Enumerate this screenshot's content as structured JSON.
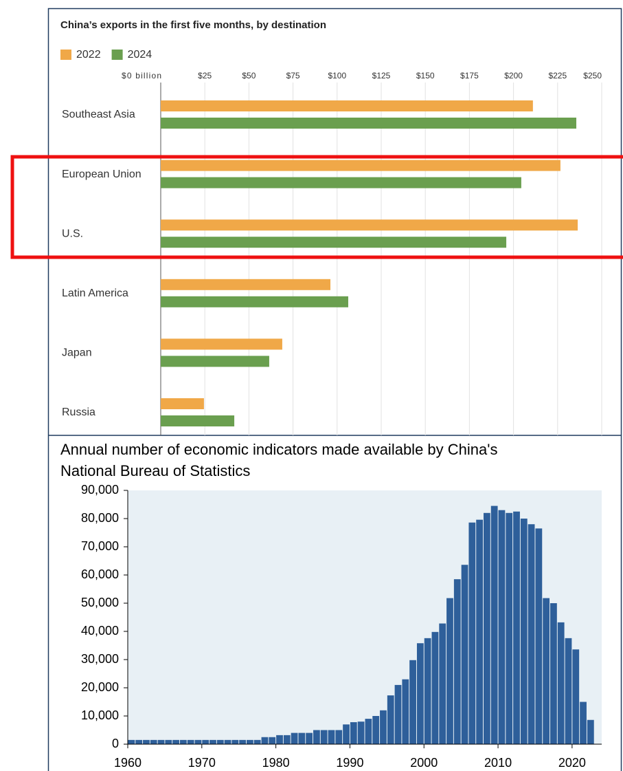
{
  "chart_data": [
    {
      "type": "barh",
      "title": "China’s exports in the first five months, by destination",
      "categories": [
        "Southeast Asia",
        "European Union",
        "U.S.",
        "Latin America",
        "Japan",
        "Russia"
      ],
      "series": [
        {
          "name": "2022",
          "color": "#f0a848",
          "values": [
            211,
            226.6,
            236.4,
            96.2,
            68.9,
            24.5
          ]
        },
        {
          "name": "2024",
          "color": "#6a9f4f",
          "values": [
            235.6,
            204.4,
            195.9,
            106.3,
            61.5,
            41.7
          ]
        }
      ],
      "xlim": [
        0,
        250
      ],
      "xticks": [
        {
          "value": 0,
          "label": "$0 billion"
        },
        {
          "value": 25,
          "label": "$25"
        },
        {
          "value": 50,
          "label": "$50"
        },
        {
          "value": 75,
          "label": "$75"
        },
        {
          "value": 100,
          "label": "$100"
        },
        {
          "value": 125,
          "label": "$125"
        },
        {
          "value": 150,
          "label": "$150"
        },
        {
          "value": 175,
          "label": "$175"
        },
        {
          "value": 200,
          "label": "$200"
        },
        {
          "value": 225,
          "label": "$225"
        },
        {
          "value": 250,
          "label": "$250"
        }
      ],
      "grid": true,
      "legend": "top-left"
    },
    {
      "type": "bar",
      "title": "Annual number of economic indicators made available by China's",
      "subtitle": "National Bureau of Statistics",
      "color": "#2e5f9a",
      "x": [
        1960,
        1961,
        1962,
        1963,
        1964,
        1965,
        1966,
        1967,
        1968,
        1969,
        1970,
        1971,
        1972,
        1973,
        1974,
        1975,
        1976,
        1977,
        1978,
        1979,
        1980,
        1981,
        1982,
        1983,
        1984,
        1985,
        1986,
        1987,
        1988,
        1989,
        1990,
        1991,
        1992,
        1993,
        1994,
        1995,
        1996,
        1997,
        1998,
        1999,
        2000,
        2001,
        2002,
        2003,
        2004,
        2005,
        2006,
        2007,
        2008,
        2009,
        2010,
        2011,
        2012,
        2013,
        2014,
        2015,
        2016,
        2017,
        2018,
        2019,
        2020,
        2021,
        2022
      ],
      "values": [
        1500,
        1500,
        1500,
        1500,
        1500,
        1500,
        1500,
        1500,
        1500,
        1500,
        1500,
        1500,
        1500,
        1500,
        1500,
        1500,
        1500,
        1500,
        2500,
        2500,
        3200,
        3200,
        4000,
        4000,
        4000,
        5000,
        5000,
        5000,
        5000,
        7000,
        7800,
        8000,
        9000,
        10000,
        12000,
        17300,
        21000,
        23000,
        29800,
        35800,
        37600,
        39800,
        42800,
        51800,
        58500,
        63600,
        78600,
        79600,
        82000,
        84500,
        83000,
        82000,
        82500,
        80000,
        78000,
        76500,
        51800,
        50000,
        43200,
        37600,
        33600,
        15000,
        8600
      ],
      "xlim": [
        1960,
        2024
      ],
      "xticks": [
        1960,
        1970,
        1980,
        1990,
        2000,
        2010,
        2020
      ],
      "ylim": [
        0,
        90000
      ],
      "yticks": [
        0,
        {
          "value": 10000,
          "label": "10,000"
        },
        {
          "value": 20000,
          "label": "20,000"
        },
        {
          "value": 30000,
          "label": "30,000"
        },
        {
          "value": 40000,
          "label": "40,000"
        },
        {
          "value": 50000,
          "label": "50,000"
        },
        {
          "value": 60000,
          "label": "60,000"
        },
        {
          "value": 70000,
          "label": "70,000"
        },
        {
          "value": 80000,
          "label": "80,000"
        },
        {
          "value": 90000,
          "label": "90,000"
        }
      ]
    }
  ]
}
